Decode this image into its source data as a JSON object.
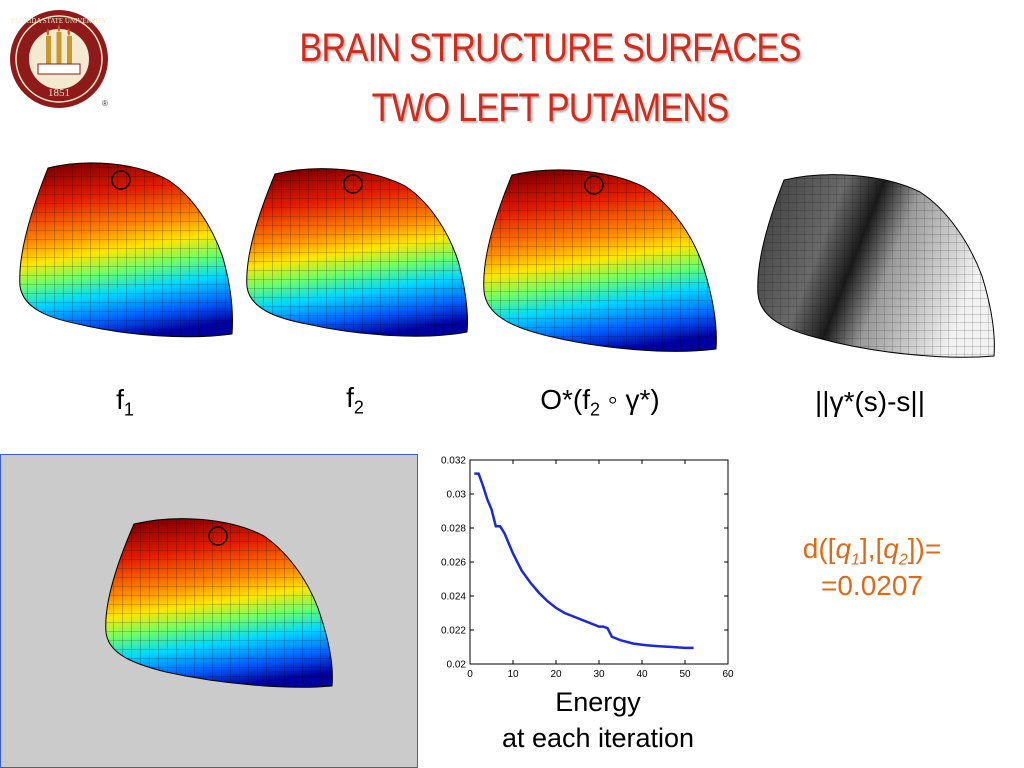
{
  "slide": {
    "title_line1": "BRAIN STRUCTURE SURFACES",
    "title_line2": "TWO LEFT PUTAMENS",
    "logo_text": "FLORIDA STATE UNIVERSITY",
    "logo_year": "1851",
    "logo_banner": "VIRES ARTES MORES"
  },
  "captions": {
    "f1_base": "f",
    "f1_sub": "1",
    "f2_base": "f",
    "f2_sub": "2",
    "comp_pre": "O*(f",
    "comp_sub": "2",
    "comp_post": " ◦ γ*)",
    "norm": "||γ*(s)-s||"
  },
  "distance": {
    "line1_pre": "d([",
    "q1": "q",
    "q1_sub": "1",
    "mid": "],[",
    "q2": "q",
    "q2_sub": "2",
    "line1_post": "])=",
    "line2": "=0.0207"
  },
  "energy_caption": {
    "line1": "Energy",
    "line2": "at each iteration"
  },
  "colors": {
    "title": "#d42a1a",
    "distance": "#e06a14",
    "curve": "#1a2ad6",
    "panel": "#cbcbcb"
  },
  "chart_data": {
    "type": "line",
    "xlim": [
      0,
      60
    ],
    "ylim": [
      0.02,
      0.032
    ],
    "xticks": [
      0,
      10,
      20,
      30,
      40,
      50,
      60
    ],
    "yticks": [
      "0.02",
      "0.022",
      "0.024",
      "0.026",
      "0.028",
      "0.03",
      "0.032"
    ],
    "series": [
      {
        "x": [
          1,
          2,
          3,
          4,
          5,
          6,
          7,
          8,
          10,
          12,
          14,
          16,
          18,
          20,
          22,
          24,
          26,
          28,
          30,
          31,
          32,
          33,
          35,
          38,
          41,
          44,
          47,
          50,
          52
        ],
        "y": [
          0.0312,
          0.0312,
          0.0305,
          0.0297,
          0.0291,
          0.0281,
          0.0281,
          0.0277,
          0.0265,
          0.0255,
          0.0248,
          0.0242,
          0.0237,
          0.0233,
          0.023,
          0.0228,
          0.0226,
          0.0224,
          0.0222,
          0.0222,
          0.0221,
          0.0216,
          0.0214,
          0.0212,
          0.0211,
          0.02105,
          0.021,
          0.02095,
          0.02095
        ]
      }
    ]
  }
}
